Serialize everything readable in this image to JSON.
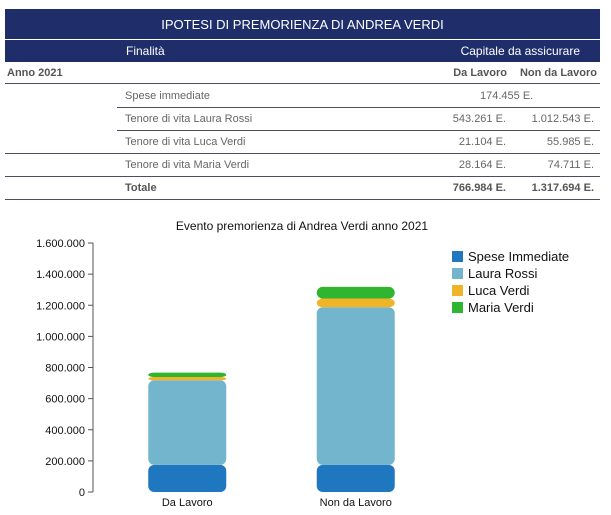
{
  "table": {
    "title": "IPOTESI DI PREMORIENZA DI ANDREA VERDI",
    "col_finalita": "Finalità",
    "col_capitale": "Capitale da assicurare",
    "year_label": "Anno 2021",
    "sub_col1": "Da Lavoro",
    "sub_col2": "Non da Lavoro",
    "rows": [
      {
        "label": "Spese immediate",
        "value_shared": "174.455 E."
      },
      {
        "label": "Tenore di vita Laura Rossi",
        "da_lavoro": "543.261 E.",
        "non_da_lavoro": "1.012.543 E."
      },
      {
        "label": "Tenore di vita Luca Verdi",
        "da_lavoro": "21.104 E.",
        "non_da_lavoro": "55.985 E."
      },
      {
        "label": "Tenore di vita Maria Verdi",
        "da_lavoro": "28.164 E.",
        "non_da_lavoro": "74.711 E."
      }
    ],
    "total": {
      "label": "Totale",
      "da_lavoro": "766.984 E.",
      "non_da_lavoro": "1.317.694 E."
    }
  },
  "chart_data": {
    "type": "bar",
    "stacked": true,
    "title": "Evento premorienza di Andrea Verdi anno 2021",
    "categories": [
      "Da Lavoro",
      "Non da Lavoro"
    ],
    "series": [
      {
        "name": "Spese Immediate",
        "values": [
          174455,
          174455
        ],
        "color": "#1f77c0"
      },
      {
        "name": "Laura Rossi",
        "values": [
          543261,
          1012543
        ],
        "color": "#72b5cc"
      },
      {
        "name": "Luca Verdi",
        "values": [
          21104,
          55985
        ],
        "color": "#f0b429"
      },
      {
        "name": "Maria Verdi",
        "values": [
          28164,
          74711
        ],
        "color": "#2fb52f"
      }
    ],
    "ylim": [
      0,
      1600000
    ],
    "yticks": [
      "0",
      "200.000",
      "400.000",
      "600.000",
      "800.000",
      "1.000.000",
      "1.200.000",
      "1.400.000",
      "1.600.000"
    ],
    "legend_position": "right",
    "grid": false
  }
}
